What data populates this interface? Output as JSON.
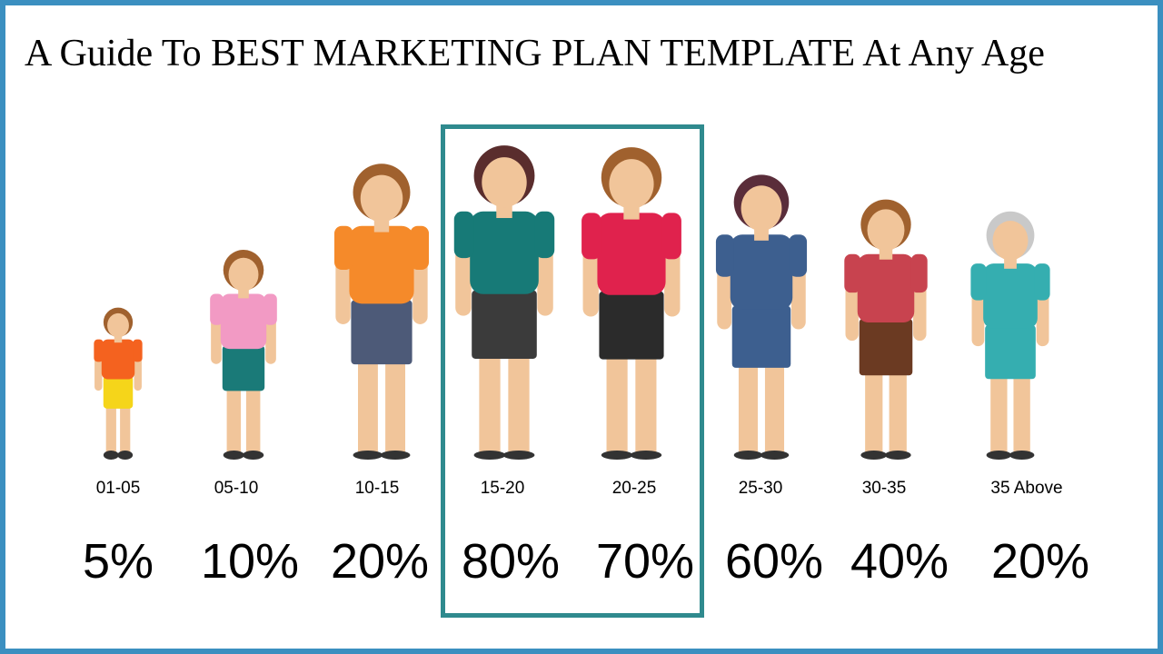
{
  "title": "A Guide To BEST MARKETING PLAN TEMPLATE At Any Age",
  "items": [
    {
      "age": "01-05",
      "percent": "5%"
    },
    {
      "age": "05-10",
      "percent": "10%"
    },
    {
      "age": "10-15",
      "percent": "20%"
    },
    {
      "age": "15-20",
      "percent": "80%"
    },
    {
      "age": "20-25",
      "percent": "70%"
    },
    {
      "age": "25-30",
      "percent": "60%"
    },
    {
      "age": "30-35",
      "percent": "40%"
    },
    {
      "age": "35 Above",
      "percent": "20%"
    }
  ]
}
